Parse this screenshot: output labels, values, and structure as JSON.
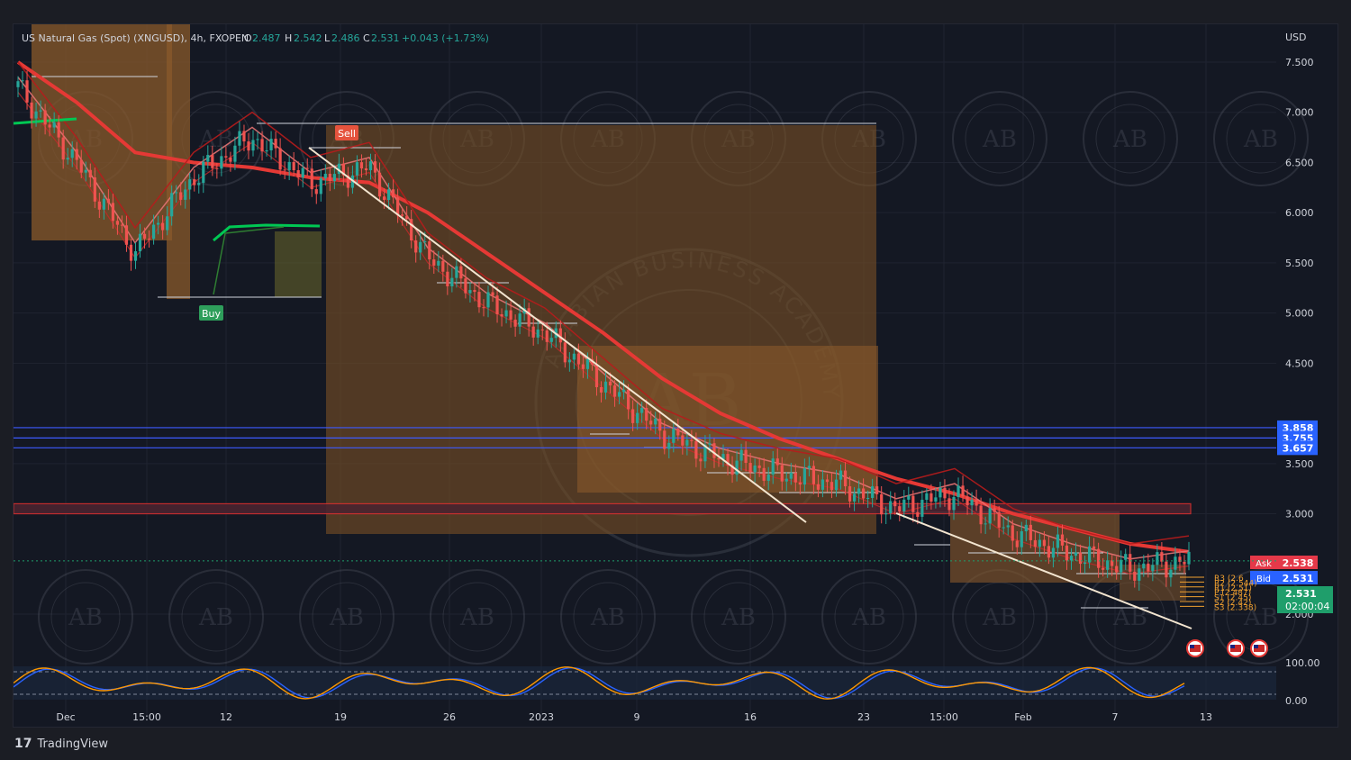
{
  "header": {
    "symbol": "US Natural Gas (Spot) (XNGUSD), 4h, FXOPEN",
    "o_label": "O",
    "o_value": "2.487",
    "h_label": "H",
    "h_value": "2.542",
    "l_label": "L",
    "l_value": "2.486",
    "c_label": "C",
    "c_value": "2.531",
    "change": "+0.043 (+1.73%)"
  },
  "currency": "USD",
  "brand": "TradingView",
  "colors": {
    "background": "#141823",
    "up": "#26a69a",
    "down": "#ef5350",
    "ema_red": "#e53935",
    "box_orange": "#8a5a2b",
    "zone_blue": "#3d5afe",
    "zone_red": "#d32f2f",
    "buy": "#2e9e5b",
    "sell": "#e5533d",
    "bid": "#2962ff",
    "ask": "#e53949",
    "last": "#1f9e6b"
  },
  "watermark": {
    "center_text": "AB",
    "ring_text": "ARABIAN BUSINESS ACADEMY"
  },
  "signals": {
    "buy": "Buy",
    "sell": "Sell"
  },
  "price_tags": {
    "zone_levels": [
      "3.858",
      "3.755",
      "3.657"
    ],
    "ask_label": "Ask",
    "ask_value": "2.538",
    "bid_label": "Bid",
    "bid_value": "2.531",
    "last_value": "2.531",
    "countdown": "02:00:04"
  },
  "pivot_labels": [
    "R3 (2.6",
    "R2 (2.544)",
    "R1 (2.51)",
    "P (2.487)",
    "S1 (2.45)",
    "S2 (2.42)",
    "S3 (2.338)"
  ],
  "chart_data": {
    "type": "line",
    "title": "US Natural Gas (Spot) (XNGUSD), 4h, FXOPEN",
    "xlabel": "",
    "ylabel": "USD",
    "ylim": [
      1.8,
      7.8
    ],
    "yticks": [
      "7.500",
      "7.000",
      "6.500",
      "6.000",
      "5.500",
      "5.000",
      "4.500",
      "3.500",
      "3.000",
      "2.000"
    ],
    "xticks": [
      "Dec",
      "15:00",
      "12",
      "19",
      "26",
      "2023",
      "9",
      "16",
      "23",
      "15:00",
      "Feb",
      "7",
      "13"
    ],
    "x": [
      0,
      5,
      10,
      15,
      20,
      25,
      30,
      35,
      40,
      45,
      50,
      55,
      60,
      65,
      70,
      75,
      80,
      85,
      90,
      95,
      100
    ],
    "series": [
      {
        "name": "",
        "values": [
          7.25,
          6.5,
          5.6,
          6.35,
          6.75,
          6.3,
          6.45,
          5.55,
          5.1,
          4.8,
          4.3,
          3.8,
          3.55,
          3.4,
          3.3,
          3.05,
          3.2,
          2.8,
          2.6,
          2.45,
          2.53
        ]
      },
      {
        "name": "",
        "values": [
          7.5,
          7.1,
          6.6,
          6.5,
          6.45,
          6.35,
          6.3,
          6.0,
          5.6,
          5.2,
          4.8,
          4.35,
          4.0,
          3.75,
          3.55,
          3.35,
          3.2,
          3.0,
          2.85,
          2.7,
          2.62
        ]
      }
    ],
    "oscillator": {
      "range": [
        0,
        100
      ],
      "ticks": [
        "100.00",
        "0.00"
      ]
    },
    "horizontal_zones": [
      3.858,
      3.755,
      3.657
    ],
    "red_zone": [
      3.0,
      3.1
    ]
  }
}
